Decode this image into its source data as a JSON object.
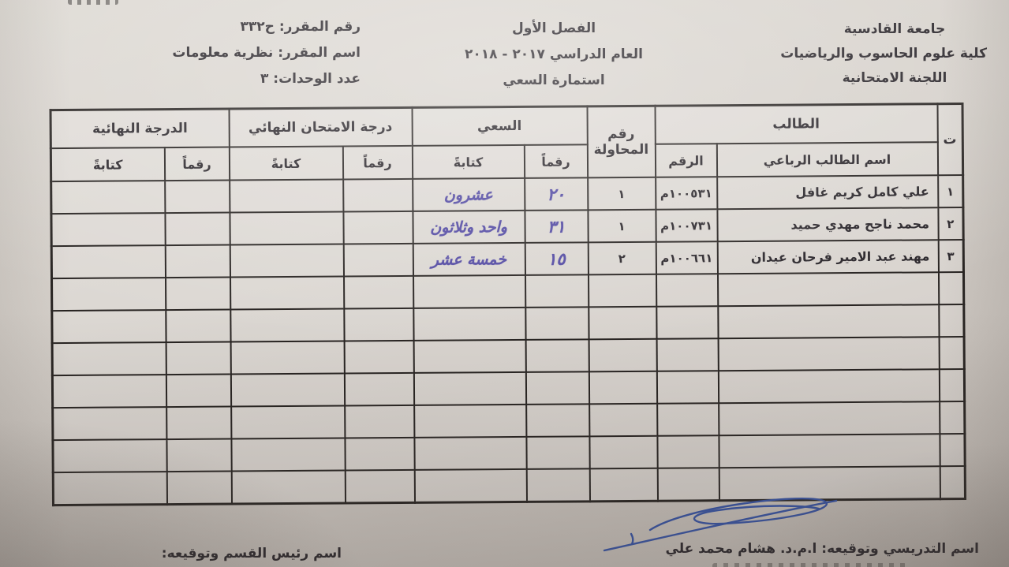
{
  "colors": {
    "paper": "#d6d1cb",
    "print_ink": "#29252a",
    "table_line": "#262220",
    "handwriting_ink": "#5148a2",
    "signature_ink": "#35509e"
  },
  "header": {
    "right": {
      "line1": "جامعة القادسية",
      "line2": "كلية علوم الحاسوب والرياضيات",
      "line3": "اللجنة الامتحانية"
    },
    "center": {
      "line1": "الفصل الأول",
      "line2": "العام الدراسي ٢٠١٧ - ٢٠١٨",
      "line3": "استمارة السعي"
    },
    "left": {
      "course_no_label": "رقم المقرر:",
      "course_no": "ح٣٣٢",
      "course_name_label": "اسم المقرر:",
      "course_name": "نظرية معلومات",
      "units_label": "عدد الوحدات:",
      "units": "٣"
    }
  },
  "table": {
    "header": {
      "seq": "ت",
      "student_group": "الطالب",
      "name": "اسم الطالب الرباعي",
      "number": "الرقم",
      "attempt": "رقم المحاولة",
      "sai_group": "السعي",
      "exam_group": "درجة الامتحان النهائي",
      "final_group": "الدرجة النهائية",
      "numeric": "رقماً",
      "written": "كتابةً"
    },
    "col_keys": [
      "seq",
      "name",
      "number",
      "attempt",
      "sai_num",
      "sai_text",
      "exam_num",
      "exam_text",
      "final_num",
      "final_text"
    ],
    "hand_keys": [
      "sai_num",
      "sai_text"
    ],
    "rows": [
      {
        "seq": "١",
        "name": "علي كامل كريم غافل",
        "number": "١٠٠٥٣١م",
        "attempt": "١",
        "sai_num": "٢٠",
        "sai_text": "عشرون",
        "exam_num": "",
        "exam_text": "",
        "final_num": "",
        "final_text": ""
      },
      {
        "seq": "٢",
        "name": "محمد ناجح مهدي حميد",
        "number": "١٠٠٧٣١م",
        "attempt": "١",
        "sai_num": "٣١",
        "sai_text": "واحد وثلاثون",
        "exam_num": "",
        "exam_text": "",
        "final_num": "",
        "final_text": ""
      },
      {
        "seq": "٣",
        "name": "مهند عبد الامير فرحان عيدان",
        "number": "١٠٠٦٦١م",
        "attempt": "٢",
        "sai_num": "١٥",
        "sai_text": "خمسة عشر",
        "exam_num": "",
        "exam_text": "",
        "final_num": "",
        "final_text": ""
      },
      {
        "seq": "",
        "name": "",
        "number": "",
        "attempt": "",
        "sai_num": "",
        "sai_text": "",
        "exam_num": "",
        "exam_text": "",
        "final_num": "",
        "final_text": ""
      },
      {
        "seq": "",
        "name": "",
        "number": "",
        "attempt": "",
        "sai_num": "",
        "sai_text": "",
        "exam_num": "",
        "exam_text": "",
        "final_num": "",
        "final_text": ""
      },
      {
        "seq": "",
        "name": "",
        "number": "",
        "attempt": "",
        "sai_num": "",
        "sai_text": "",
        "exam_num": "",
        "exam_text": "",
        "final_num": "",
        "final_text": ""
      },
      {
        "seq": "",
        "name": "",
        "number": "",
        "attempt": "",
        "sai_num": "",
        "sai_text": "",
        "exam_num": "",
        "exam_text": "",
        "final_num": "",
        "final_text": ""
      },
      {
        "seq": "",
        "name": "",
        "number": "",
        "attempt": "",
        "sai_num": "",
        "sai_text": "",
        "exam_num": "",
        "exam_text": "",
        "final_num": "",
        "final_text": ""
      },
      {
        "seq": "",
        "name": "",
        "number": "",
        "attempt": "",
        "sai_num": "",
        "sai_text": "",
        "exam_num": "",
        "exam_text": "",
        "final_num": "",
        "final_text": ""
      },
      {
        "seq": "",
        "name": "",
        "number": "",
        "attempt": "",
        "sai_num": "",
        "sai_text": "",
        "exam_num": "",
        "exam_text": "",
        "final_num": "",
        "final_text": ""
      }
    ]
  },
  "footer": {
    "teacher_label": "اسم التدريسي وتوقيعه:",
    "teacher_name": "ا.م.د. هشام محمد علي",
    "head_label": "اسم رئيس القسم وتوقيعه:"
  }
}
